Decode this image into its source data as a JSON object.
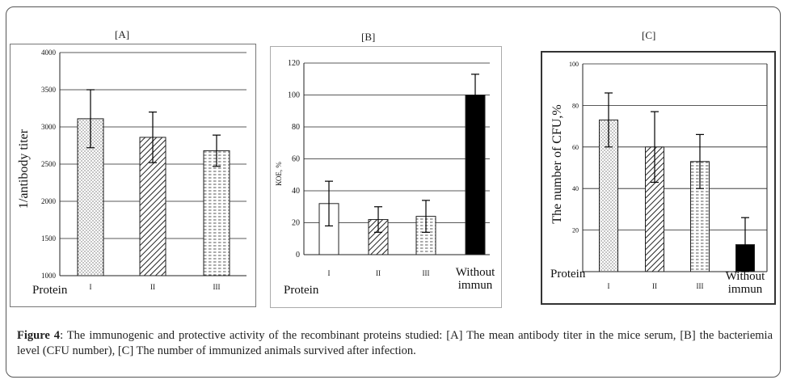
{
  "caption": {
    "label": "Figure 4",
    "text": ": The immunogenic and protective activity of the recombinant proteins studied: [A] The mean antibody titer in the mice serum, [B] the bacteriemia level (CFU number), [C] The number of immunized animals survived after infection."
  },
  "chart_data": [
    {
      "panel": "[A]",
      "type": "bar",
      "categories": [
        "I",
        "II",
        "III"
      ],
      "values": [
        3110,
        2860,
        2680
      ],
      "errors": [
        390,
        340,
        210
      ],
      "patterns": [
        "dots",
        "hatch",
        "dashes"
      ],
      "xlabel": "Protein",
      "ylabel": "1/antibody titer",
      "ylim": [
        1000,
        4000
      ],
      "yticks": [
        1000,
        1500,
        2000,
        2500,
        3000,
        3500,
        4000
      ],
      "grid": true
    },
    {
      "panel": "[B]",
      "type": "bar",
      "categories": [
        "I",
        "II",
        "III",
        "Without immun"
      ],
      "values": [
        32,
        22,
        24,
        100
      ],
      "errors": [
        14,
        8,
        10,
        13
      ],
      "patterns": [
        "blank",
        "hatch",
        "dashes",
        "solid"
      ],
      "xlabel": "Protein",
      "ylabel": "КОЕ, %",
      "ylim": [
        0,
        120
      ],
      "yticks": [
        0,
        20,
        40,
        60,
        80,
        100,
        120
      ],
      "grid": true
    },
    {
      "panel": "[C]",
      "type": "bar",
      "categories": [
        "I",
        "II",
        "III",
        "Without immun"
      ],
      "values": [
        73,
        60,
        53,
        13
      ],
      "errors": [
        13,
        17,
        13,
        13
      ],
      "patterns": [
        "dots",
        "hatch",
        "dashes",
        "solid"
      ],
      "xlabel": "Protein",
      "ylabel": "The number of CFU,%",
      "ylim": [
        0,
        100
      ],
      "yticks": [
        20,
        40,
        60,
        80,
        100
      ],
      "grid": true
    }
  ]
}
